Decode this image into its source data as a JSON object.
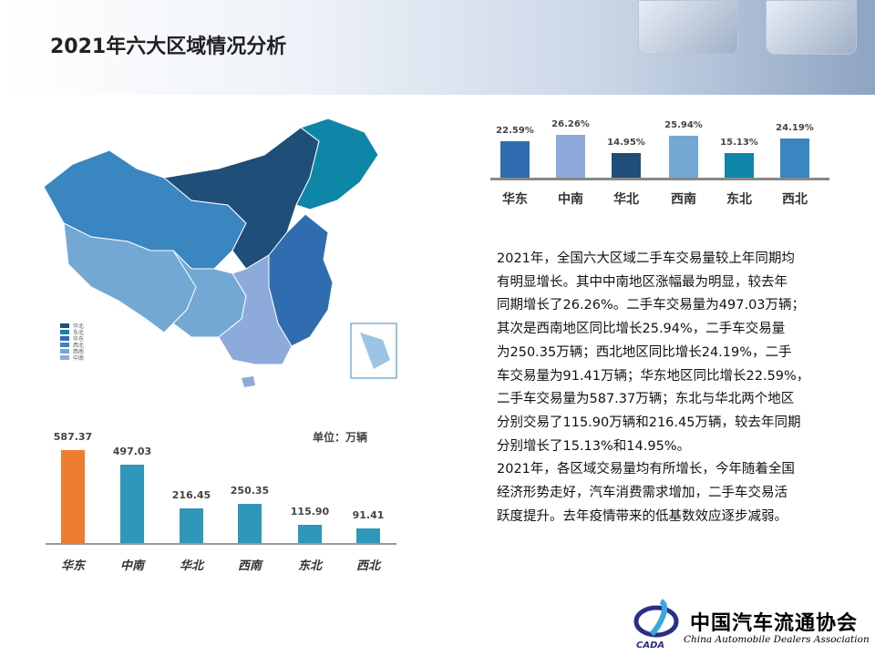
{
  "title": "2021年六大区域情况分析",
  "growth_chart": {
    "type": "bar",
    "categories": [
      "华东",
      "中南",
      "华北",
      "西南",
      "东北",
      "西北"
    ],
    "values": [
      22.59,
      26.26,
      14.95,
      25.94,
      15.13,
      24.19
    ],
    "labels": [
      "22.59%",
      "26.26%",
      "14.95%",
      "25.94%",
      "15.13%",
      "24.19%"
    ],
    "colors": [
      "#2f6db0",
      "#8eaadb",
      "#1f4e79",
      "#72a8d3",
      "#0e86a8",
      "#3a86c0"
    ]
  },
  "chart_data": [
    {
      "type": "bar",
      "categories": [
        "华东",
        "中南",
        "华北",
        "西南",
        "东北",
        "西北"
      ],
      "values": [
        22.59,
        26.26,
        14.95,
        25.94,
        15.13,
        24.19
      ],
      "unit": "%"
    },
    {
      "type": "bar",
      "categories": [
        "华东",
        "中南",
        "华北",
        "西南",
        "东北",
        "西北"
      ],
      "values": [
        587.37,
        497.03,
        216.45,
        250.35,
        115.9,
        91.41
      ],
      "unit_label": "单位：万辆"
    }
  ],
  "volume_chart": {
    "unit": "单位：万辆",
    "categories": [
      "华东",
      "中南",
      "华北",
      "西南",
      "东北",
      "西北"
    ],
    "values": [
      587.37,
      497.03,
      216.45,
      250.35,
      115.9,
      91.41
    ],
    "labels": [
      "587.37",
      "497.03",
      "216.45",
      "250.35",
      "115.90",
      "91.41"
    ],
    "highlight_color": "#ed7d31",
    "bar_color": "#2e97ba"
  },
  "map": {
    "legend": [
      {
        "label": "华北",
        "color": "#1f4e79"
      },
      {
        "label": "东北",
        "color": "#0e86a8"
      },
      {
        "label": "华东",
        "color": "#2f6db0"
      },
      {
        "label": "西北",
        "color": "#3a86c0"
      },
      {
        "label": "西南",
        "color": "#72a8d3"
      },
      {
        "label": "中南",
        "color": "#8eaadb"
      }
    ]
  },
  "paragraph": [
    "2021年，全国六大区域二手车交易量较上年同期均",
    "有明显增长。其中中南地区涨幅最为明显，较去年",
    "同期增长了26.26%。二手车交易量为497.03万辆；",
    "其次是西南地区同比增长25.94%，二手车交易量",
    "为250.35万辆；西北地区同比增长24.19%，二手",
    "车交易量为91.41万辆；华东地区同比增长22.59%，",
    "二手车交易量为587.37万辆；东北与华北两个地区",
    "分别交易了115.90万辆和216.45万辆，较去年同期",
    "分别增长了15.13%和14.95%。",
    "2021年，各区域交易量均有所增长，今年随着全国",
    "经济形势走好，汽车消费需求增加，二手车交易活",
    "跃度提升。去年疫情带来的低基数效应逐步减弱。"
  ],
  "logo": {
    "cn": "中国汽车流通协会",
    "en": "China Automobile Dealers Association",
    "abbr": "CADA"
  }
}
